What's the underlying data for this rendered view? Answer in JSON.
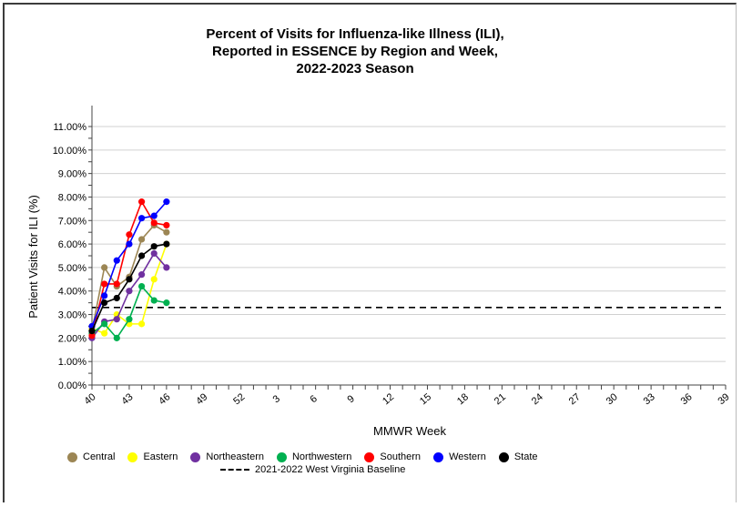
{
  "chart_data": {
    "type": "line",
    "title": [
      "Percent of Visits for Influenza-like Illness (ILI),",
      "Reported in ESSENCE by Region and Week,",
      "2022-2023 Season"
    ],
    "xlabel": "MMWR Week",
    "ylabel": "Patient Visits for ILI (%)",
    "ylim": [
      0,
      11
    ],
    "yticks": [
      "0.00%",
      "1.00%",
      "2.00%",
      "3.00%",
      "4.00%",
      "5.00%",
      "6.00%",
      "7.00%",
      "8.00%",
      "9.00%",
      "10.00%",
      "11.00%"
    ],
    "x_categories": [
      "40",
      "41",
      "42",
      "43",
      "44",
      "45",
      "46",
      "47",
      "48",
      "49",
      "50",
      "51",
      "52",
      "1",
      "2",
      "3",
      "4",
      "5",
      "6",
      "7",
      "8",
      "9",
      "10",
      "11",
      "12",
      "13",
      "14",
      "15",
      "16",
      "17",
      "18",
      "19",
      "20",
      "21",
      "22",
      "23",
      "24",
      "25",
      "26",
      "27",
      "28",
      "29",
      "30",
      "31",
      "32",
      "33",
      "34",
      "35",
      "36",
      "37",
      "38",
      "39"
    ],
    "x_tick_labels": [
      "40",
      "43",
      "46",
      "49",
      "52",
      "3",
      "6",
      "9",
      "12",
      "15",
      "18",
      "21",
      "24",
      "27",
      "30",
      "33",
      "36",
      "39"
    ],
    "series": [
      {
        "name": "Central",
        "color": "#9c8654",
        "x": [
          "40",
          "41",
          "42",
          "43",
          "44",
          "45",
          "46"
        ],
        "values": [
          2.3,
          5.0,
          4.2,
          4.6,
          6.2,
          6.8,
          6.5
        ]
      },
      {
        "name": "Eastern",
        "color": "#ffff00",
        "x": [
          "40",
          "41",
          "42",
          "43",
          "44",
          "45",
          "46"
        ],
        "values": [
          2.4,
          2.2,
          3.0,
          2.6,
          2.6,
          4.5,
          6.0
        ]
      },
      {
        "name": "Northeastern",
        "color": "#7030a0",
        "x": [
          "40",
          "41",
          "42",
          "43",
          "44",
          "45",
          "46"
        ],
        "values": [
          2.0,
          2.7,
          2.8,
          4.0,
          4.7,
          5.6,
          5.0
        ]
      },
      {
        "name": "Northwestern",
        "color": "#00b050",
        "x": [
          "40",
          "41",
          "42",
          "43",
          "44",
          "45",
          "46"
        ],
        "values": [
          2.2,
          2.6,
          2.0,
          2.8,
          4.2,
          3.6,
          3.5
        ]
      },
      {
        "name": "Southern",
        "color": "#ff0000",
        "x": [
          "40",
          "41",
          "42",
          "43",
          "44",
          "45",
          "46"
        ],
        "values": [
          2.1,
          4.3,
          4.3,
          6.4,
          7.8,
          6.9,
          6.8
        ]
      },
      {
        "name": "Western",
        "color": "#0000ff",
        "x": [
          "40",
          "41",
          "42",
          "43",
          "44",
          "45",
          "46"
        ],
        "values": [
          2.5,
          3.8,
          5.3,
          6.0,
          7.1,
          7.2,
          7.8
        ]
      },
      {
        "name": "State",
        "color": "#000000",
        "x": [
          "40",
          "41",
          "42",
          "43",
          "44",
          "45",
          "46"
        ],
        "values": [
          2.3,
          3.5,
          3.7,
          4.5,
          5.5,
          5.9,
          6.0
        ]
      }
    ],
    "baseline": {
      "name": "2021-2022 West Virginia Baseline",
      "value": 3.3
    },
    "grid": true,
    "legend_position": "bottom"
  }
}
